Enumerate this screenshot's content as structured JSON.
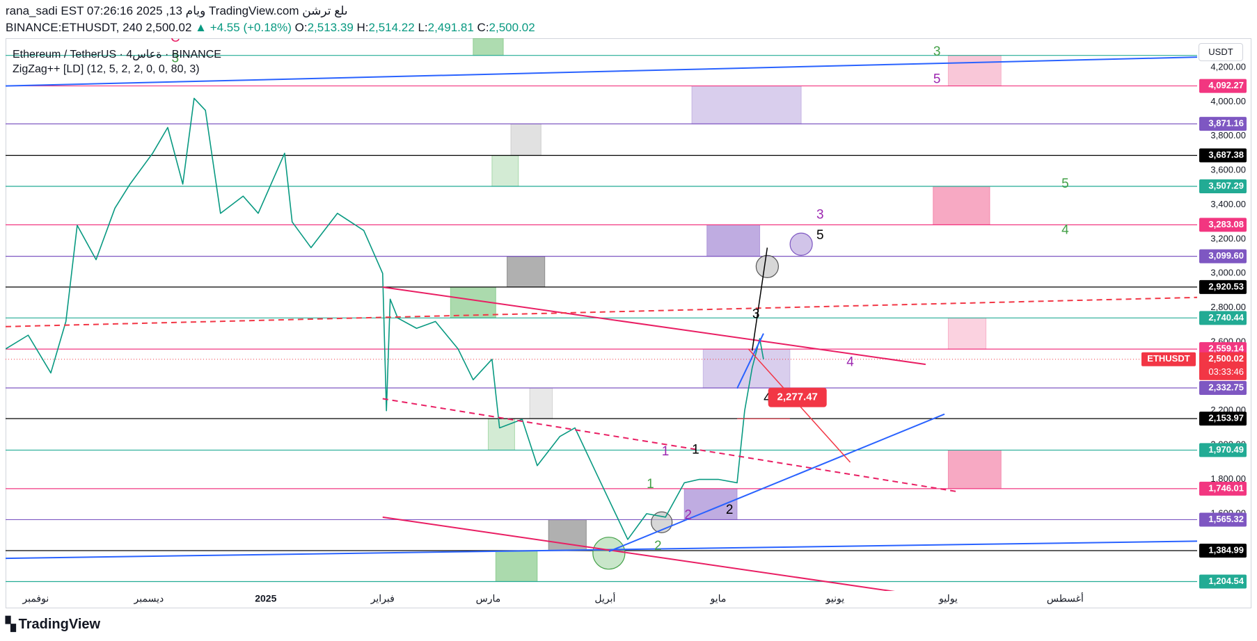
{
  "header": {
    "line1": "rana_sadi EST 07:26:16 2025 ,13 ويام TradingView.com ىلع ترشن",
    "symbol_line": "BINANCE:ETHUSDT, 240 2,500.02",
    "change": "+4.55 (+0.18%)",
    "o_label": "O:",
    "o_value": "2,513.39",
    "h_label": "H:",
    "h_value": "2,514.22",
    "l_label": "L:",
    "l_value": "2,491.81",
    "c_label": "C:",
    "c_value": "2,500.02"
  },
  "legend": {
    "title": "Ethereum / TetherUS · 4ةعاس · BINANCE",
    "indicator": "ZigZag++ [LD] (12, 5, 2, 2, 0, 0, 80, 3)"
  },
  "axis_currency": "USDT",
  "brand": "TradingView",
  "chart_data": {
    "type": "line",
    "series": [
      {
        "name": "ETHUSDT",
        "color": "#089981",
        "x": [
          "2024-10-24",
          "2024-10-30",
          "2024-11-05",
          "2024-11-09",
          "2024-11-12",
          "2024-11-17",
          "2024-11-22",
          "2024-11-26",
          "2024-12-02",
          "2024-12-06",
          "2024-12-10",
          "2024-12-13",
          "2024-12-16",
          "2024-12-20",
          "2024-12-26",
          "2024-12-30",
          "2025-01-06",
          "2025-01-08",
          "2025-01-13",
          "2025-01-20",
          "2025-01-27",
          "2025-02-01",
          "2025-02-02",
          "2025-02-03",
          "2025-02-05",
          "2025-02-10",
          "2025-02-15",
          "2025-02-21",
          "2025-02-25",
          "2025-03-02",
          "2025-03-04",
          "2025-03-10",
          "2025-03-14",
          "2025-03-20",
          "2025-03-24",
          "2025-03-30",
          "2025-04-07",
          "2025-04-12",
          "2025-04-17",
          "2025-04-22",
          "2025-04-26",
          "2025-05-01",
          "2025-05-06",
          "2025-05-08",
          "2025-05-10",
          "2025-05-12",
          "2025-05-13"
        ],
        "values": [
          2560,
          2640,
          2420,
          2720,
          3280,
          3080,
          3380,
          3520,
          3700,
          3850,
          3520,
          4020,
          3950,
          3350,
          3450,
          3350,
          3700,
          3300,
          3150,
          3350,
          3250,
          3000,
          2200,
          2850,
          2740,
          2680,
          2720,
          2560,
          2380,
          2500,
          2100,
          2150,
          1880,
          2050,
          2100,
          1820,
          1450,
          1600,
          1580,
          1780,
          1800,
          1800,
          1780,
          2200,
          2450,
          2620,
          2500
        ]
      }
    ],
    "y_ticks": [
      1600,
      1800,
      2000,
      2200,
      2400,
      2600,
      2800,
      3000,
      3200,
      3400,
      3600,
      3800,
      4000,
      4200
    ],
    "y_tick_labels": [
      "1,600.00",
      "1,800.00",
      "2,000.00",
      "2,200.00",
      "2,400.00",
      "2,600.00",
      "2,800.00",
      "3,000.00",
      "3,200.00",
      "3,400.00",
      "3,600.00",
      "3,800.00",
      "4,000.00",
      "4,200.00"
    ],
    "x_ticks": [
      {
        "label": "نوفمبر",
        "date": "2024-11-01"
      },
      {
        "label": "ديسمبر",
        "date": "2024-12-01"
      },
      {
        "label": "2025",
        "date": "2025-01-01",
        "bold": true
      },
      {
        "label": "فبراير",
        "date": "2025-02-01"
      },
      {
        "label": "مارس",
        "date": "2025-03-01"
      },
      {
        "label": "أبريل",
        "date": "2025-04-01"
      },
      {
        "label": "مايو",
        "date": "2025-05-01"
      },
      {
        "label": "يونيو",
        "date": "2025-06-01"
      },
      {
        "label": "يوليو",
        "date": "2025-07-01"
      },
      {
        "label": "أغسطس",
        "date": "2025-08-01"
      }
    ],
    "ylim": [
      1150,
      4370
    ],
    "xlim": [
      "2024-10-24",
      "2025-09-05"
    ],
    "levels": [
      {
        "value": 4270,
        "label": "",
        "color": "#22ab94"
      },
      {
        "value": 4092.27,
        "label": "4,092.27",
        "color": "#f23680"
      },
      {
        "value": 3871.16,
        "label": "3,871.16",
        "color": "#7e57c2"
      },
      {
        "value": 3687.38,
        "label": "3,687.38",
        "color": "#000000"
      },
      {
        "value": 3507.29,
        "label": "3,507.29",
        "color": "#22ab94"
      },
      {
        "value": 3283.08,
        "label": "3,283.08",
        "color": "#f23680"
      },
      {
        "value": 3099.6,
        "label": "3,099.60",
        "color": "#7e57c2"
      },
      {
        "value": 2920.53,
        "label": "2,920.53",
        "color": "#000000"
      },
      {
        "value": 2740.44,
        "label": "2,740.44",
        "color": "#22ab94"
      },
      {
        "value": 2559.14,
        "label": "2,559.14",
        "color": "#f23680"
      },
      {
        "value": 2332.75,
        "label": "2,332.75",
        "color": "#7e57c2"
      },
      {
        "value": 2153.97,
        "label": "2,153.97",
        "color": "#000000"
      },
      {
        "value": 1970.49,
        "label": "1,970.49",
        "color": "#22ab94"
      },
      {
        "value": 1746.01,
        "label": "1,746.01",
        "color": "#f23680"
      },
      {
        "value": 1565.32,
        "label": "1,565.32",
        "color": "#7e57c2"
      },
      {
        "value": 1384.99,
        "label": "1,384.99",
        "color": "#000000"
      },
      {
        "value": 1204.54,
        "label": "1,204.54",
        "color": "#22ab94"
      }
    ],
    "last_price": {
      "value": 2500.02,
      "label": "ETHUSDT",
      "price": "2,500.02",
      "countdown": "03:33:46",
      "color": "#f23645"
    },
    "zones": [
      {
        "x1": "2025-02-25",
        "x2": "2025-03-05",
        "y1": 4370,
        "y2": 4270,
        "color": "#6cc06f",
        "opacity": 0.55
      },
      {
        "x1": "2025-07-01",
        "x2": "2025-07-15",
        "y1": 4270,
        "y2": 4092,
        "color": "#f48fb1",
        "opacity": 0.5
      },
      {
        "x1": "2025-04-24",
        "x2": "2025-05-23",
        "y1": 4092,
        "y2": 3871,
        "color": "#b39ddb",
        "opacity": 0.5
      },
      {
        "x1": "2025-03-07",
        "x2": "2025-03-15",
        "y1": 3871,
        "y2": 3687,
        "color": "#bdbdbd",
        "opacity": 0.45
      },
      {
        "x1": "2025-03-02",
        "x2": "2025-03-09",
        "y1": 3687,
        "y2": 3507,
        "color": "#81c784",
        "opacity": 0.35
      },
      {
        "x1": "2025-06-27",
        "x2": "2025-07-12",
        "y1": 3507,
        "y2": 3283,
        "color": "#f06292",
        "opacity": 0.55
      },
      {
        "x1": "2025-04-28",
        "x2": "2025-05-12",
        "y1": 3283,
        "y2": 3099,
        "color": "#9575cd",
        "opacity": 0.6
      },
      {
        "x1": "2025-03-06",
        "x2": "2025-03-16",
        "y1": 3099,
        "y2": 2920,
        "color": "#616161",
        "opacity": 0.5
      },
      {
        "x1": "2025-02-19",
        "x2": "2025-03-03",
        "y1": 2920,
        "y2": 2740,
        "color": "#66bb6a",
        "opacity": 0.55
      },
      {
        "x1": "2025-07-01",
        "x2": "2025-07-11",
        "y1": 2740,
        "y2": 2559,
        "color": "#f48fb1",
        "opacity": 0.4
      },
      {
        "x1": "2025-04-27",
        "x2": "2025-05-20",
        "y1": 2559,
        "y2": 2332,
        "color": "#b39ddb",
        "opacity": 0.5
      },
      {
        "x1": "2025-03-12",
        "x2": "2025-03-18",
        "y1": 2332,
        "y2": 2154,
        "color": "#bdbdbd",
        "opacity": 0.35
      },
      {
        "x1": "2025-03-01",
        "x2": "2025-03-08",
        "y1": 2154,
        "y2": 1970,
        "color": "#81c784",
        "opacity": 0.35
      },
      {
        "x1": "2025-07-01",
        "x2": "2025-07-15",
        "y1": 1970,
        "y2": 1746,
        "color": "#f06292",
        "opacity": 0.55
      },
      {
        "x1": "2025-04-22",
        "x2": "2025-05-06",
        "y1": 1746,
        "y2": 1565,
        "color": "#9575cd",
        "opacity": 0.6
      },
      {
        "x1": "2025-03-17",
        "x2": "2025-03-27",
        "y1": 1565,
        "y2": 1385,
        "color": "#616161",
        "opacity": 0.5
      },
      {
        "x1": "2025-03-03",
        "x2": "2025-03-14",
        "y1": 1385,
        "y2": 1205,
        "color": "#66bb6a",
        "opacity": 0.55
      }
    ],
    "trendlines": [
      {
        "x1": "2024-10-24",
        "y1": 4092,
        "x2": "2025-09-05",
        "y2": 4260,
        "color": "#2962ff",
        "dash": false,
        "width": 2
      },
      {
        "x1": "2024-10-24",
        "y1": 1340,
        "x2": "2025-09-05",
        "y2": 1440,
        "color": "#2962ff",
        "dash": false,
        "width": 2
      },
      {
        "x1": "2025-02-01",
        "y1": 2920,
        "x2": "2025-06-25",
        "y2": 2470,
        "color": "#e91e63",
        "dash": false,
        "width": 2
      },
      {
        "x1": "2025-02-01",
        "y1": 1580,
        "x2": "2025-06-25",
        "y2": 1120,
        "color": "#e91e63",
        "dash": false,
        "width": 2
      },
      {
        "x1": "2024-10-24",
        "y1": 2690,
        "x2": "2025-09-05",
        "y2": 2860,
        "color": "#f23645",
        "dash": true,
        "width": 2
      },
      {
        "x1": "2025-02-01",
        "y1": 2270,
        "x2": "2025-07-03",
        "y2": 1730,
        "color": "#e91e63",
        "dash": true,
        "width": 2
      },
      {
        "x1": "2025-04-02",
        "y1": 1380,
        "x2": "2025-06-30",
        "y2": 2180,
        "color": "#2962ff",
        "dash": false,
        "width": 2
      },
      {
        "x1": "2025-05-06",
        "y1": 2330,
        "x2": "2025-05-13",
        "y2": 2650,
        "color": "#2962ff",
        "dash": false,
        "width": 2
      },
      {
        "x1": "2025-05-10",
        "y1": 2550,
        "x2": "2025-05-14",
        "y2": 3150,
        "color": "#000000",
        "dash": false,
        "width": 1.5
      },
      {
        "x1": "2025-05-09",
        "y1": 2560,
        "x2": "2025-06-05",
        "y2": 1900,
        "color": "#f23645",
        "dash": false,
        "width": 1.5
      },
      {
        "x1": "2025-05-06",
        "y1": 2153,
        "x2": "2025-05-20",
        "y2": 2153,
        "color": "#f23645",
        "dash": false,
        "width": 1
      }
    ],
    "circles": [
      {
        "x": "2025-05-14",
        "y": 3040,
        "r": 16,
        "fill": "#bdbdbd",
        "stroke": "#555555"
      },
      {
        "x": "2025-05-23",
        "y": 3170,
        "r": 16,
        "fill": "#b39ddb",
        "stroke": "#7e57c2"
      },
      {
        "x": "2025-04-16",
        "y": 1550,
        "r": 15,
        "fill": "#bdbdbd",
        "stroke": "#555555"
      },
      {
        "x": "2025-04-02",
        "y": 1370,
        "r": 23,
        "fill": "#a5d6a7",
        "stroke": "#43a047"
      }
    ],
    "wave_labels": [
      {
        "text": "C",
        "x": "2024-12-08",
        "y": 4370,
        "color": "#e91e63"
      },
      {
        "text": "3",
        "x": "2024-12-08",
        "y": 4250,
        "color": "#43a047"
      },
      {
        "text": "3",
        "x": "2025-06-28",
        "y": 4290,
        "color": "#43a047"
      },
      {
        "text": "5",
        "x": "2025-06-28",
        "y": 4130,
        "color": "#9c27b0"
      },
      {
        "text": "5",
        "x": "2025-08-01",
        "y": 3520,
        "color": "#43a047"
      },
      {
        "text": "4",
        "x": "2025-08-01",
        "y": 3250,
        "color": "#43a047"
      },
      {
        "text": "3",
        "x": "2025-05-28",
        "y": 3340,
        "color": "#9c27b0"
      },
      {
        "text": "5",
        "x": "2025-05-28",
        "y": 3220,
        "color": "#000000"
      },
      {
        "text": "3",
        "x": "2025-05-11",
        "y": 2760,
        "color": "#000000"
      },
      {
        "text": "4",
        "x": "2025-06-05",
        "y": 2480,
        "color": "#9c27b0"
      },
      {
        "text": "4",
        "x": "2025-05-14",
        "y": 2270,
        "color": "#000000"
      },
      {
        "text": "1",
        "x": "2025-04-17",
        "y": 1960,
        "color": "#9c27b0"
      },
      {
        "text": "1",
        "x": "2025-04-25",
        "y": 1970,
        "color": "#000000"
      },
      {
        "text": "1",
        "x": "2025-04-13",
        "y": 1770,
        "color": "#43a047"
      },
      {
        "text": "2",
        "x": "2025-04-23",
        "y": 1590,
        "color": "#9c27b0"
      },
      {
        "text": "2",
        "x": "2025-05-04",
        "y": 1620,
        "color": "#000000"
      },
      {
        "text": "2",
        "x": "2025-04-15",
        "y": 1410,
        "color": "#43a047"
      }
    ],
    "callout": {
      "text": "2,277.47",
      "x": "2025-05-22",
      "y": 2277.47,
      "color": "#f23645"
    }
  }
}
